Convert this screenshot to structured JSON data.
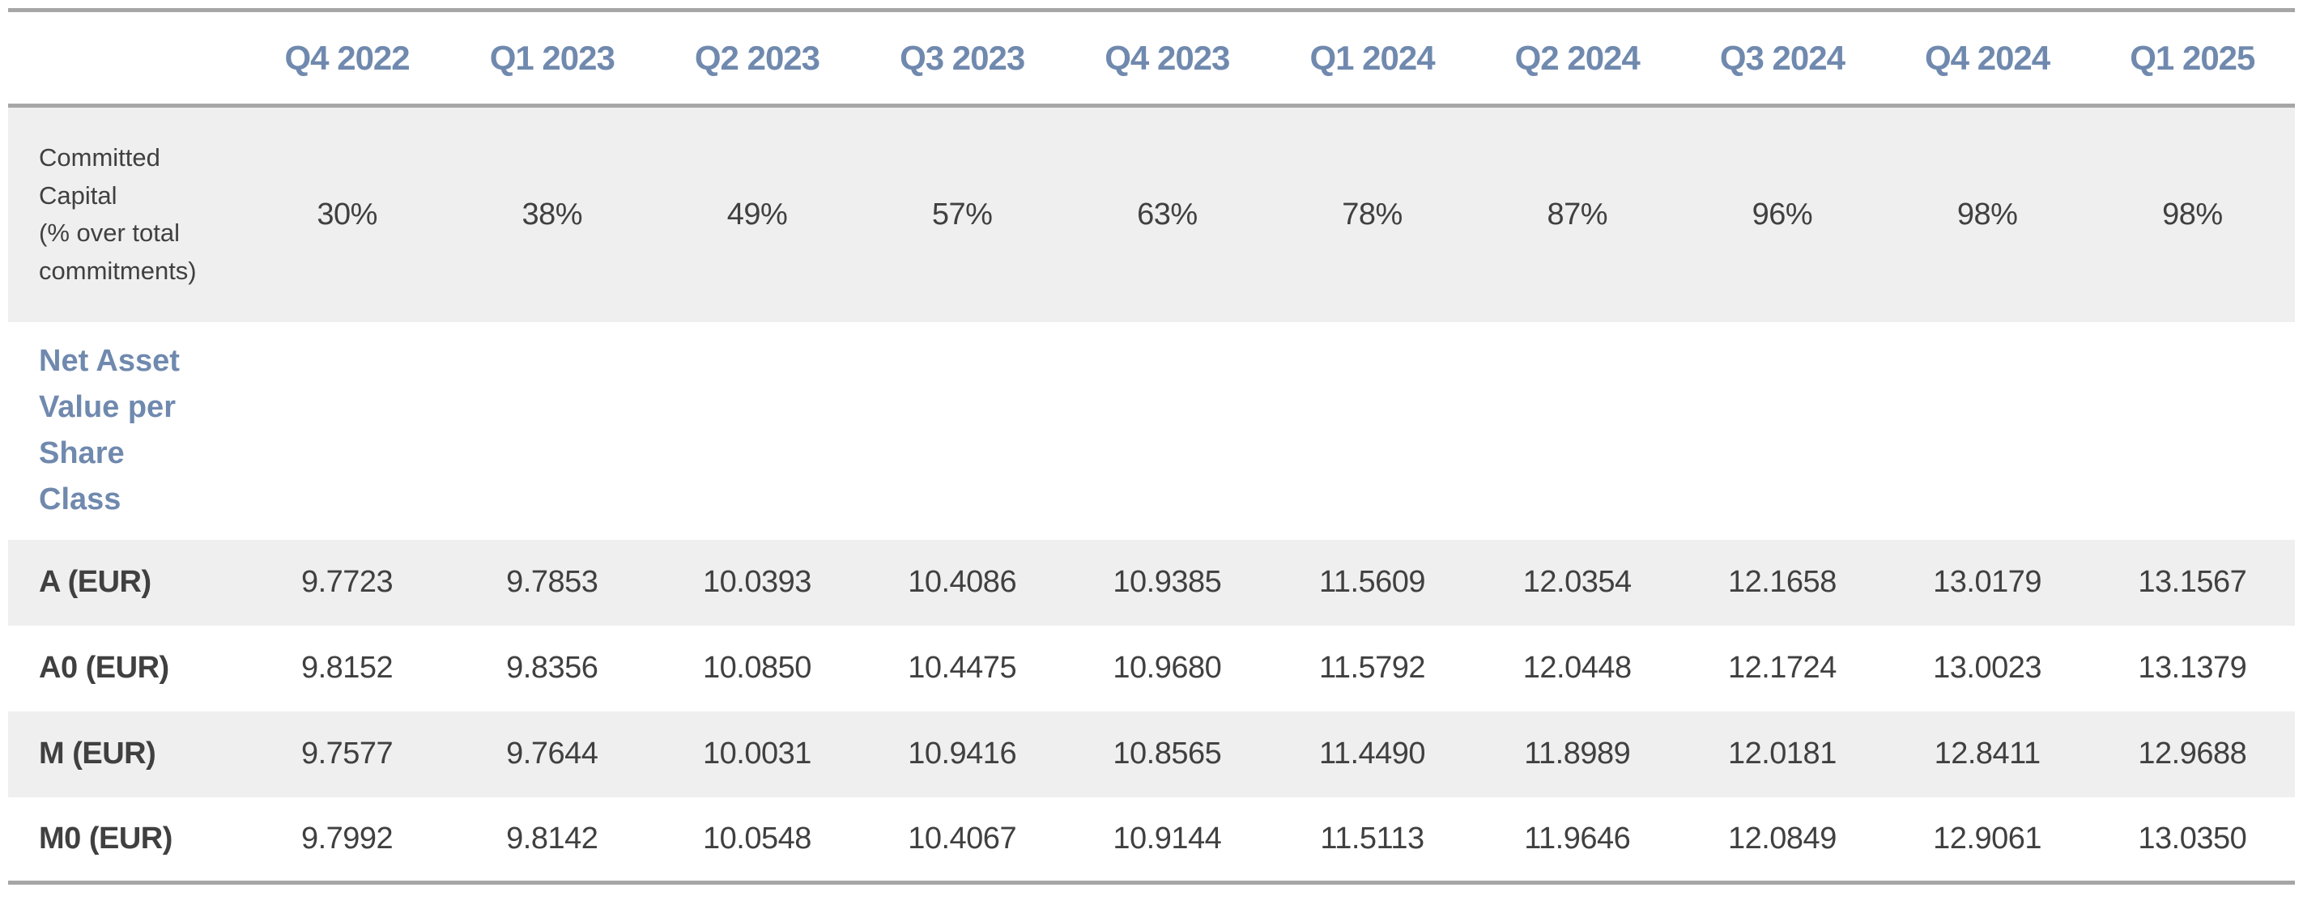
{
  "table": {
    "quarters": [
      "Q4 2022",
      "Q1 2023",
      "Q2 2023",
      "Q3 2023",
      "Q4 2023",
      "Q1 2024",
      "Q2 2024",
      "Q3 2024",
      "Q4 2024",
      "Q1 2025"
    ],
    "committed_capital": {
      "label": "Committed\nCapital\n(% over total\ncommitments)",
      "values": [
        "30%",
        "38%",
        "49%",
        "57%",
        "63%",
        "78%",
        "87%",
        "96%",
        "98%",
        "98%"
      ]
    },
    "nav_section_label": "Net Asset\nValue per\nShare\nClass",
    "share_classes": [
      {
        "label": "A (EUR)",
        "values": [
          "9.7723",
          "9.7853",
          "10.0393",
          "10.4086",
          "10.9385",
          "11.5609",
          "12.0354",
          "12.1658",
          "13.0179",
          "13.1567"
        ]
      },
      {
        "label": "A0 (EUR)",
        "values": [
          "9.8152",
          "9.8356",
          "10.0850",
          "10.4475",
          "10.9680",
          "11.5792",
          "12.0448",
          "12.1724",
          "13.0023",
          "13.1379"
        ]
      },
      {
        "label": "M (EUR)",
        "values": [
          "9.7577",
          "9.7644",
          "10.0031",
          "10.9416",
          "10.8565",
          "11.4490",
          "11.8989",
          "12.0181",
          "12.8411",
          "12.9688"
        ]
      },
      {
        "label": "M0 (EUR)",
        "values": [
          "9.7992",
          "9.8142",
          "10.0548",
          "10.4067",
          "10.9144",
          "11.5113",
          "11.9646",
          "12.0849",
          "12.9061",
          "13.0350"
        ]
      }
    ],
    "colors": {
      "header_blue": "#7089ae",
      "row_band_gray": "#efefef",
      "border_gray": "#a6a6a6",
      "text_dark": "#404040"
    }
  }
}
